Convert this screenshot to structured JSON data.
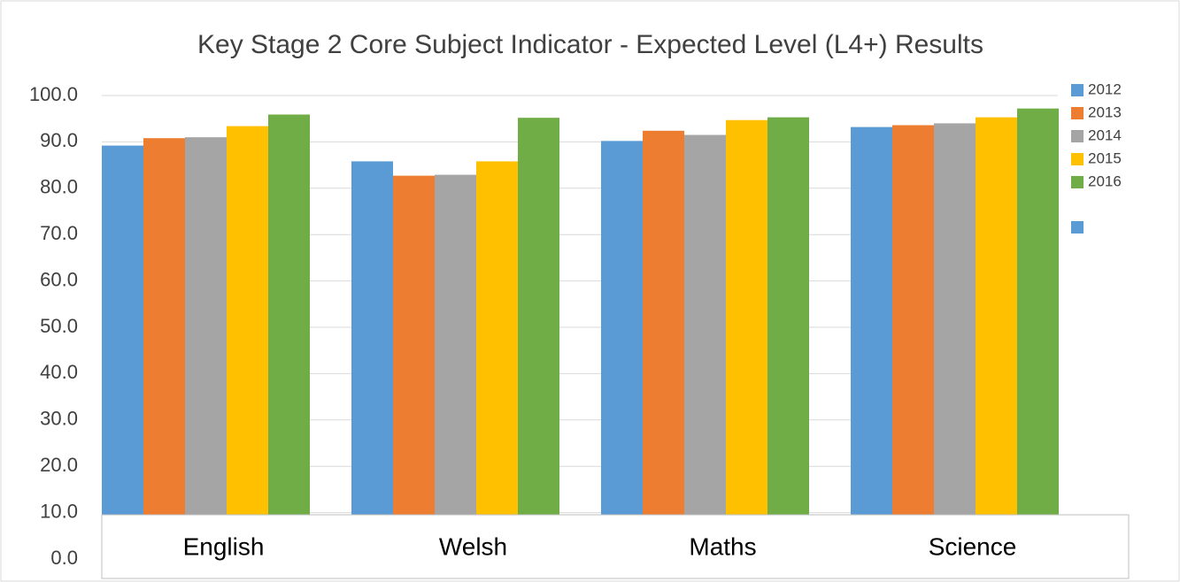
{
  "chart_data": {
    "type": "bar",
    "title": "Key Stage 2 Core Subject Indicator - Expected Level (L4+) Results",
    "categories": [
      "English",
      "Welsh",
      "Maths",
      "Science"
    ],
    "series": [
      {
        "name": "2012",
        "color": "#5b9bd5",
        "values": [
          89.2,
          85.8,
          90.2,
          93.2
        ]
      },
      {
        "name": "2013",
        "color": "#ed7d31",
        "values": [
          90.8,
          82.7,
          92.4,
          93.6
        ]
      },
      {
        "name": "2014",
        "color": "#a5a5a5",
        "values": [
          91.0,
          82.9,
          91.5,
          94.0
        ]
      },
      {
        "name": "2015",
        "color": "#ffc000",
        "values": [
          93.4,
          85.8,
          94.7,
          95.3
        ]
      },
      {
        "name": "2016",
        "color": "#70ad47",
        "values": [
          95.9,
          95.2,
          95.3,
          97.2
        ]
      }
    ],
    "ylim": [
      0,
      100
    ],
    "yticks": [
      {
        "value": 0,
        "label": "0.0"
      },
      {
        "value": 10,
        "label": "10.0"
      },
      {
        "value": 20,
        "label": "20.0"
      },
      {
        "value": 30,
        "label": "30.0"
      },
      {
        "value": 40,
        "label": "40.0"
      },
      {
        "value": 50,
        "label": "50.0"
      },
      {
        "value": 60,
        "label": "60.0"
      },
      {
        "value": 70,
        "label": "70.0"
      },
      {
        "value": 80,
        "label": "80.0"
      },
      {
        "value": 90,
        "label": "90.0"
      },
      {
        "value": 100,
        "label": "100.0"
      }
    ],
    "grid": true
  }
}
